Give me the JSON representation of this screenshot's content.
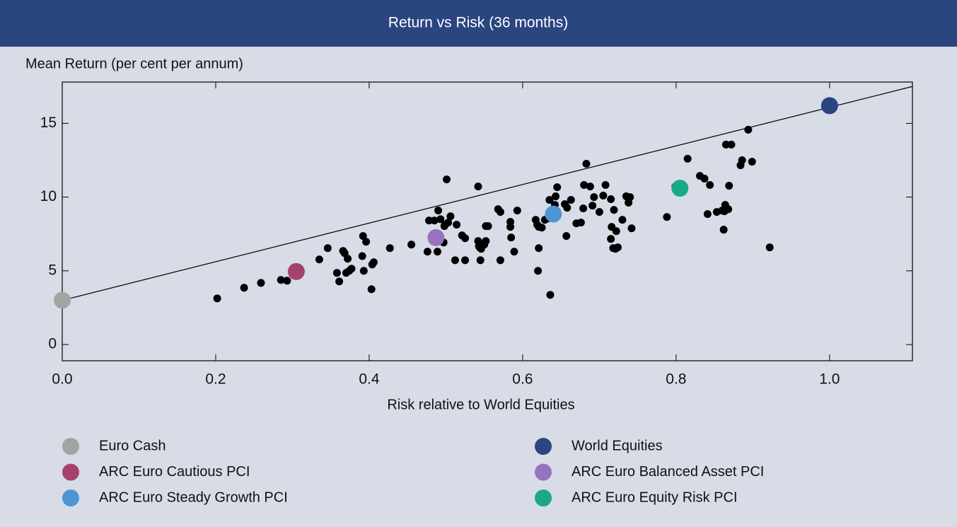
{
  "chart_data": {
    "type": "scatter",
    "title": "Return vs Risk (36 months)",
    "ylabel": "Mean Return (per cent per annum)",
    "xlabel": "Risk relative to World Equities",
    "xlim": [
      0,
      1.108
    ],
    "ylim": [
      -1.1,
      17.8
    ],
    "xticks": [
      {
        "value": 0,
        "label": "0.0"
      },
      0.2,
      0.4,
      0.6,
      0.8,
      {
        "value": 1,
        "label": "1.0"
      }
    ],
    "yticks": [
      0,
      5,
      10,
      15
    ],
    "color": "#000000",
    "x": [
      0.202,
      0.237,
      0.259,
      0.285,
      0.293,
      0.3,
      0.335,
      0.346,
      0.358,
      0.361,
      0.366,
      0.368,
      0.37,
      0.372,
      0.374,
      0.377,
      0.391,
      0.392,
      0.393,
      0.396,
      0.403,
      0.404,
      0.406,
      0.427,
      0.455,
      0.476,
      0.478,
      0.485,
      0.488,
      0.489,
      0.49,
      0.493,
      0.497,
      0.498,
      0.499,
      0.501,
      0.503,
      0.506,
      0.512,
      0.514,
      0.521,
      0.525,
      0.525,
      0.542,
      0.543,
      0.544,
      0.545,
      0.546,
      0.55,
      0.552,
      0.552,
      0.555,
      0.542,
      0.568,
      0.571,
      0.571,
      0.584,
      0.584,
      0.585,
      0.589,
      0.593,
      0.617,
      0.619,
      0.621,
      0.621,
      0.62,
      0.625,
      0.629,
      0.633,
      0.635,
      0.636,
      0.642,
      0.643,
      0.645,
      0.655,
      0.657,
      0.658,
      0.663,
      0.67,
      0.676,
      0.679,
      0.68,
      0.683,
      0.688,
      0.691,
      0.693,
      0.7,
      0.705,
      0.708,
      0.715,
      0.715,
      0.716,
      0.719,
      0.718,
      0.721,
      0.722,
      0.724,
      0.73,
      0.735,
      0.738,
      0.74,
      0.742,
      0.788,
      0.799,
      0.815,
      0.831,
      0.837,
      0.841,
      0.844,
      0.853,
      0.86,
      0.862,
      0.863,
      0.864,
      0.865,
      0.868,
      0.869,
      0.872,
      0.884,
      0.886,
      0.894,
      0.899,
      0.922
    ],
    "values": [
      3.13,
      3.85,
      4.18,
      4.38,
      4.33,
      5.0,
      5.77,
      6.54,
      4.86,
      4.28,
      6.35,
      6.2,
      4.86,
      5.82,
      5.0,
      5.14,
      6.0,
      7.36,
      5.0,
      6.97,
      3.75,
      5.43,
      5.58,
      6.54,
      6.78,
      6.3,
      8.41,
      8.41,
      7.07,
      6.3,
      9.09,
      8.5,
      6.92,
      8.03,
      8.13,
      11.2,
      8.27,
      8.7,
      5.72,
      8.13,
      7.4,
      7.21,
      5.72,
      7.02,
      6.68,
      6.59,
      5.72,
      6.49,
      6.78,
      7.02,
      8.03,
      8.03,
      10.72,
      9.18,
      5.72,
      8.99,
      8.32,
      7.98,
      7.26,
      6.3,
      9.09,
      8.46,
      8.13,
      6.54,
      7.98,
      5.0,
      7.93,
      8.46,
      8.56,
      9.81,
      3.37,
      9.47,
      10.05,
      10.67,
      9.52,
      7.36,
      9.28,
      9.81,
      8.22,
      8.27,
      9.23,
      10.82,
      12.26,
      10.72,
      9.42,
      10.0,
      8.99,
      10.1,
      10.82,
      9.86,
      7.16,
      7.98,
      9.13,
      6.54,
      6.49,
      7.69,
      6.59,
      8.46,
      10.05,
      9.62,
      10.0,
      7.88,
      8.65,
      10.72,
      12.6,
      11.44,
      11.25,
      8.85,
      10.82,
      8.99,
      9.09,
      7.79,
      9.04,
      9.47,
      13.56,
      9.18,
      10.77,
      13.56,
      12.16,
      12.5,
      14.57,
      12.4,
      6.59
    ],
    "trend_line": {
      "x": [
        0,
        1.108
      ],
      "values": [
        3.0,
        17.5
      ],
      "color": "#000000"
    },
    "series": [
      {
        "name": "Euro Cash",
        "color": "#a3a3a3",
        "x": [
          0
        ],
        "values": [
          3.0
        ]
      },
      {
        "name": "World Equities",
        "color": "#2a4580",
        "x": [
          1.0
        ],
        "values": [
          16.2
        ]
      },
      {
        "name": "ARC Euro Cautious PCI",
        "color": "#a6416e",
        "x": [
          0.305
        ],
        "values": [
          4.95
        ]
      },
      {
        "name": "ARC Euro Balanced Asset PCI",
        "color": "#9673bd",
        "x": [
          0.487
        ],
        "values": [
          7.25
        ]
      },
      {
        "name": "ARC Euro Steady Growth PCI",
        "color": "#4f94d4",
        "x": [
          0.64
        ],
        "values": [
          8.85
        ]
      },
      {
        "name": "ARC Euro Equity Risk PCI",
        "color": "#1aa88b",
        "x": [
          0.805
        ],
        "values": [
          10.6
        ]
      }
    ]
  }
}
